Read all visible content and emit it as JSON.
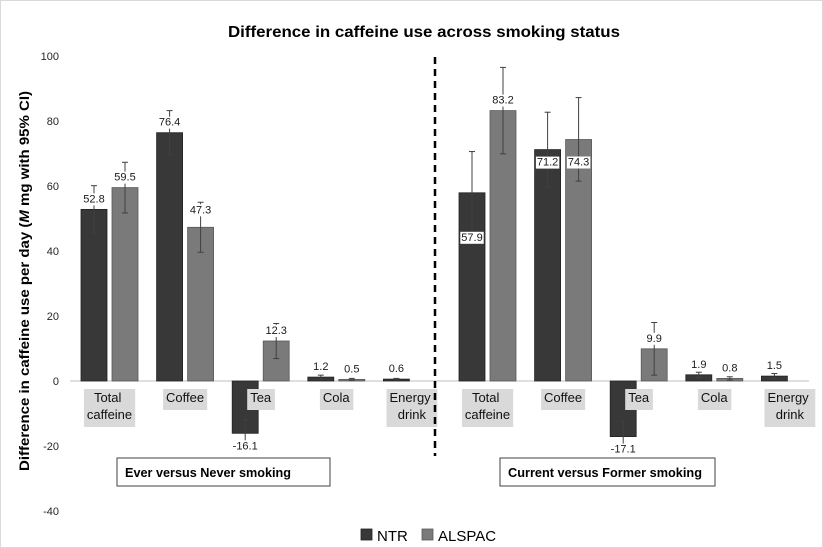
{
  "chart_data": {
    "type": "bar",
    "title": "Difference in caffeine use across smoking status",
    "ylabel": "Difference in caffeine use per day (M mg with 95% CI)",
    "ylabel_italic": "M",
    "ylim": [
      -40,
      100
    ],
    "yticks": [
      100,
      80,
      60,
      40,
      20,
      0,
      -20,
      -40
    ],
    "grid": false,
    "legend_position": "bottom",
    "groups": [
      {
        "label": "Ever versus Never smoking",
        "categories": [
          "Total caffeine",
          "Coffee",
          "Tea",
          "Cola",
          "Energy drink"
        ]
      },
      {
        "label": "Current versus Former smoking",
        "categories": [
          "Total caffeine",
          "Coffee",
          "Tea",
          "Cola",
          "Energy drink"
        ]
      }
    ],
    "series": [
      {
        "name": "NTR",
        "color": "#383838",
        "edge_color": "#222222",
        "values": [
          [
            52.8,
            76.4,
            -16.1,
            1.2,
            0.6
          ],
          [
            57.9,
            71.2,
            -17.1,
            1.9,
            1.5
          ]
        ],
        "ci_lower": [
          [
            45.4,
            69.6,
            -20.3,
            0.6,
            0.4
          ],
          [
            45.2,
            59.7,
            -22.0,
            1.1,
            0.7
          ]
        ],
        "ci_upper": [
          [
            60.1,
            83.2,
            -11.9,
            1.8,
            0.8
          ],
          [
            70.6,
            82.7,
            -12.2,
            2.7,
            2.3
          ]
        ]
      },
      {
        "name": "ALSPAC",
        "color": "#7a7a7a",
        "edge_color": "#595959",
        "values": [
          [
            59.5,
            47.3,
            12.3,
            0.5,
            null
          ],
          [
            83.2,
            74.3,
            9.9,
            0.8,
            null
          ]
        ],
        "ci_lower": [
          [
            51.7,
            39.6,
            6.9,
            0.2,
            null
          ],
          [
            69.9,
            61.5,
            1.8,
            0.3,
            null
          ]
        ],
        "ci_upper": [
          [
            67.3,
            55.0,
            17.7,
            0.8,
            null
          ],
          [
            96.5,
            87.2,
            18.0,
            1.3,
            null
          ]
        ]
      }
    ],
    "category_label_fill": "#d9d9d9",
    "divider_color": "#000000"
  }
}
